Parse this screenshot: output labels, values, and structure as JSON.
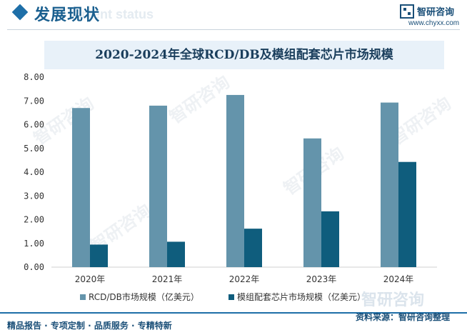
{
  "header": {
    "title": "发展现状",
    "ghost": "ment status"
  },
  "brand": {
    "name": "智研咨询",
    "url": "www.chyxx.com",
    "watermark": "智研咨询"
  },
  "footer": {
    "services": "精品报告 · 专项定制 · 品质服务 · 专精特新",
    "source": "资料来源：智研咨询整理"
  },
  "colors": {
    "accent": "#1e6fa8",
    "series1": "#6494ab",
    "series2": "#0f5d7d"
  },
  "chart_data": {
    "type": "bar",
    "title": "2020-2024年全球RCD/DB及模组配套芯片市场规模",
    "categories": [
      "2020年",
      "2021年",
      "2022年",
      "2023年",
      "2024年"
    ],
    "series": [
      {
        "name": "RCD/DB市场规模（亿美元）",
        "values": [
          6.7,
          6.8,
          7.25,
          5.42,
          6.93
        ],
        "color": "#6494ab"
      },
      {
        "name": "模组配套芯片市场规模（亿美元）",
        "values": [
          0.95,
          1.07,
          1.62,
          2.35,
          4.43
        ],
        "color": "#0f5d7d"
      }
    ],
    "ylim": [
      0,
      8
    ],
    "yticks": [
      "0.00",
      "1.00",
      "2.00",
      "3.00",
      "4.00",
      "5.00",
      "6.00",
      "7.00",
      "8.00"
    ],
    "grid": false,
    "legend": "bottom"
  }
}
